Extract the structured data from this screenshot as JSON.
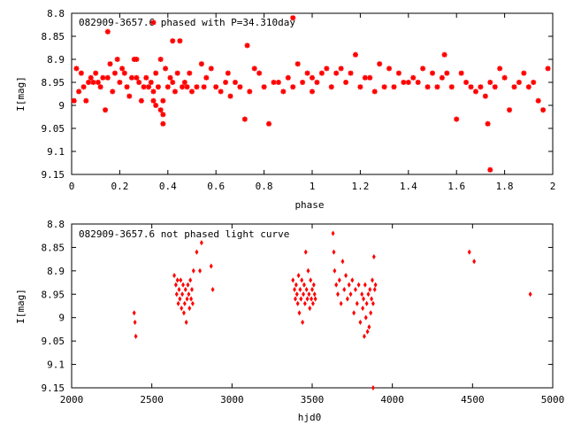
{
  "colors": {
    "marker": "#ff0000",
    "axis": "#000000",
    "background": "#ffffff"
  },
  "chart_data": [
    {
      "type": "scatter",
      "title": "082909-3657.6 phased with P=34.310day",
      "xlabel": "phase",
      "ylabel": "I[mag]",
      "xlim": [
        0,
        2
      ],
      "ylim": [
        8.8,
        9.15
      ],
      "y_inverted": true,
      "grid": false,
      "marker": "star",
      "xticks": [
        0,
        0.2,
        0.4,
        0.6,
        0.8,
        1,
        1.2,
        1.4,
        1.6,
        1.8,
        2
      ],
      "xtick_labels": [
        "0",
        "0.2",
        "0.4",
        "0.6",
        "0.8",
        "1",
        "1.2",
        "1.4",
        "1.6",
        "1.8",
        "2"
      ],
      "yticks": [
        8.8,
        8.85,
        8.9,
        8.95,
        9,
        9.05,
        9.1,
        9.15
      ],
      "ytick_labels": [
        "8.8",
        "8.85",
        "8.9",
        "8.95",
        "9",
        "9.05",
        "9.1",
        "9.15"
      ],
      "x": [
        0.01,
        0.02,
        0.03,
        0.04,
        0.05,
        0.06,
        0.07,
        0.08,
        0.09,
        0.1,
        0.11,
        0.12,
        0.13,
        0.14,
        0.15,
        0.16,
        0.17,
        0.18,
        0.19,
        0.2,
        0.21,
        0.22,
        0.23,
        0.24,
        0.25,
        0.26,
        0.27,
        0.28,
        0.29,
        0.3,
        0.31,
        0.32,
        0.33,
        0.34,
        0.34,
        0.35,
        0.35,
        0.36,
        0.37,
        0.38,
        0.38,
        0.39,
        0.4,
        0.41,
        0.42,
        0.43,
        0.44,
        0.45,
        0.46,
        0.47,
        0.48,
        0.49,
        0.5,
        0.52,
        0.54,
        0.55,
        0.56,
        0.58,
        0.6,
        0.62,
        0.64,
        0.65,
        0.66,
        0.68,
        0.7,
        0.72,
        0.74,
        0.76,
        0.78,
        0.8,
        0.82,
        0.84,
        0.86,
        0.88,
        0.9,
        0.92,
        0.94,
        0.96,
        0.98,
        1.0,
        1.02,
        1.04,
        1.06,
        1.08,
        1.1,
        1.12,
        1.14,
        1.16,
        1.18,
        1.2,
        1.22,
        1.24,
        1.26,
        1.28,
        1.3,
        1.32,
        1.34,
        1.36,
        1.38,
        1.4,
        1.42,
        1.44,
        1.46,
        1.48,
        1.5,
        1.52,
        1.54,
        1.56,
        1.58,
        1.6,
        1.62,
        1.64,
        1.66,
        1.68,
        1.7,
        1.72,
        1.73,
        1.74,
        1.76,
        1.78,
        1.8,
        1.82,
        1.84,
        1.86,
        1.88,
        1.9,
        1.92,
        1.94,
        1.96,
        1.98,
        0.15,
        0.42,
        0.34,
        0.92,
        1.74,
        0.37,
        0.38,
        0.27,
        0.73,
        1.0,
        1.55
      ],
      "y": [
        8.99,
        8.92,
        8.97,
        8.93,
        8.96,
        8.99,
        8.95,
        8.94,
        8.95,
        8.93,
        8.95,
        8.96,
        8.94,
        9.01,
        8.94,
        8.91,
        8.97,
        8.93,
        8.9,
        8.95,
        8.92,
        8.93,
        8.96,
        8.98,
        8.94,
        8.9,
        8.94,
        8.95,
        8.99,
        8.96,
        8.94,
        8.96,
        8.95,
        8.99,
        8.97,
        8.93,
        9.0,
        8.96,
        8.9,
        8.99,
        9.02,
        8.92,
        8.96,
        8.94,
        8.95,
        8.97,
        8.93,
        8.86,
        8.96,
        8.95,
        8.96,
        8.93,
        8.97,
        8.96,
        8.91,
        8.96,
        8.94,
        8.92,
        8.96,
        8.97,
        8.95,
        8.93,
        8.98,
        8.95,
        8.96,
        9.03,
        8.97,
        8.92,
        8.93,
        8.96,
        9.04,
        8.95,
        8.95,
        8.97,
        8.94,
        8.96,
        8.91,
        8.95,
        8.93,
        8.97,
        8.95,
        8.93,
        8.92,
        8.96,
        8.93,
        8.92,
        8.95,
        8.93,
        8.89,
        8.96,
        8.94,
        8.94,
        8.97,
        8.91,
        8.96,
        8.92,
        8.96,
        8.93,
        8.95,
        8.95,
        8.94,
        8.95,
        8.92,
        8.96,
        8.93,
        8.96,
        8.94,
        8.93,
        8.96,
        9.03,
        8.93,
        8.95,
        8.96,
        8.97,
        8.96,
        8.98,
        9.04,
        8.95,
        8.96,
        8.92,
        8.94,
        9.01,
        8.96,
        8.95,
        8.93,
        8.96,
        8.95,
        8.99,
        9.01,
        8.92,
        8.84,
        8.86,
        8.82,
        8.81,
        9.14,
        9.01,
        9.04,
        8.9,
        8.87,
        8.94,
        8.89
      ]
    },
    {
      "type": "scatter",
      "title": "082909-3657.6 not phased light curve",
      "xlabel": "hjd0",
      "ylabel": "I[mag]",
      "xlim": [
        2000,
        5000
      ],
      "ylim": [
        8.8,
        9.15
      ],
      "y_inverted": true,
      "grid": false,
      "marker": "diamond",
      "xticks": [
        2000,
        2500,
        3000,
        3500,
        4000,
        4500,
        5000
      ],
      "xtick_labels": [
        "2000",
        "2500",
        "3000",
        "3500",
        "4000",
        "4500",
        "5000"
      ],
      "yticks": [
        8.8,
        8.85,
        8.9,
        8.95,
        9,
        9.05,
        9.1,
        9.15
      ],
      "ytick_labels": [
        "8.8",
        "8.85",
        "8.9",
        "8.95",
        "9",
        "9.05",
        "9.1",
        "9.15"
      ],
      "x": [
        2390,
        2395,
        2400,
        2640,
        2650,
        2655,
        2660,
        2665,
        2670,
        2675,
        2680,
        2685,
        2690,
        2695,
        2700,
        2705,
        2710,
        2715,
        2720,
        2725,
        2730,
        2735,
        2740,
        2745,
        2750,
        2755,
        2760,
        2780,
        2800,
        2810,
        2870,
        2880,
        3380,
        3390,
        3395,
        3400,
        3405,
        3410,
        3415,
        3420,
        3425,
        3430,
        3435,
        3440,
        3445,
        3450,
        3455,
        3460,
        3465,
        3470,
        3475,
        3480,
        3485,
        3490,
        3495,
        3500,
        3505,
        3510,
        3515,
        3520,
        3630,
        3635,
        3640,
        3650,
        3660,
        3670,
        3680,
        3690,
        3700,
        3710,
        3720,
        3730,
        3740,
        3750,
        3760,
        3770,
        3780,
        3790,
        3800,
        3810,
        3815,
        3820,
        3825,
        3830,
        3835,
        3840,
        3845,
        3850,
        3855,
        3860,
        3865,
        3870,
        3875,
        3880,
        3885,
        3890,
        3895,
        4480,
        4510,
        4860
      ],
      "y": [
        8.99,
        9.01,
        9.04,
        8.91,
        8.93,
        8.95,
        8.92,
        8.97,
        8.94,
        8.96,
        8.92,
        8.98,
        8.95,
        8.93,
        8.99,
        8.97,
        8.94,
        9.01,
        8.96,
        8.93,
        8.95,
        8.98,
        8.92,
        8.96,
        8.94,
        8.97,
        8.9,
        8.86,
        8.9,
        8.84,
        8.89,
        8.94,
        8.92,
        8.94,
        8.96,
        8.93,
        8.95,
        8.97,
        8.91,
        8.99,
        8.94,
        8.96,
        8.92,
        9.01,
        8.95,
        8.93,
        8.97,
        8.86,
        8.94,
        8.96,
        8.9,
        8.95,
        8.98,
        8.92,
        8.96,
        8.94,
        8.97,
        8.93,
        8.95,
        8.96,
        8.82,
        8.86,
        8.9,
        8.93,
        8.95,
        8.92,
        8.97,
        8.88,
        8.94,
        8.91,
        8.96,
        8.93,
        8.95,
        8.92,
        8.99,
        8.94,
        8.97,
        8.93,
        9.01,
        8.95,
        8.98,
        8.96,
        9.04,
        8.93,
        9.0,
        8.97,
        9.03,
        8.95,
        9.02,
        8.94,
        8.99,
        8.96,
        8.92,
        8.97,
        8.87,
        8.94,
        8.93,
        8.86,
        8.88,
        8.95
      ],
      "y_extra_offscale_point": {
        "x": 3880,
        "y": 9.15
      }
    }
  ]
}
